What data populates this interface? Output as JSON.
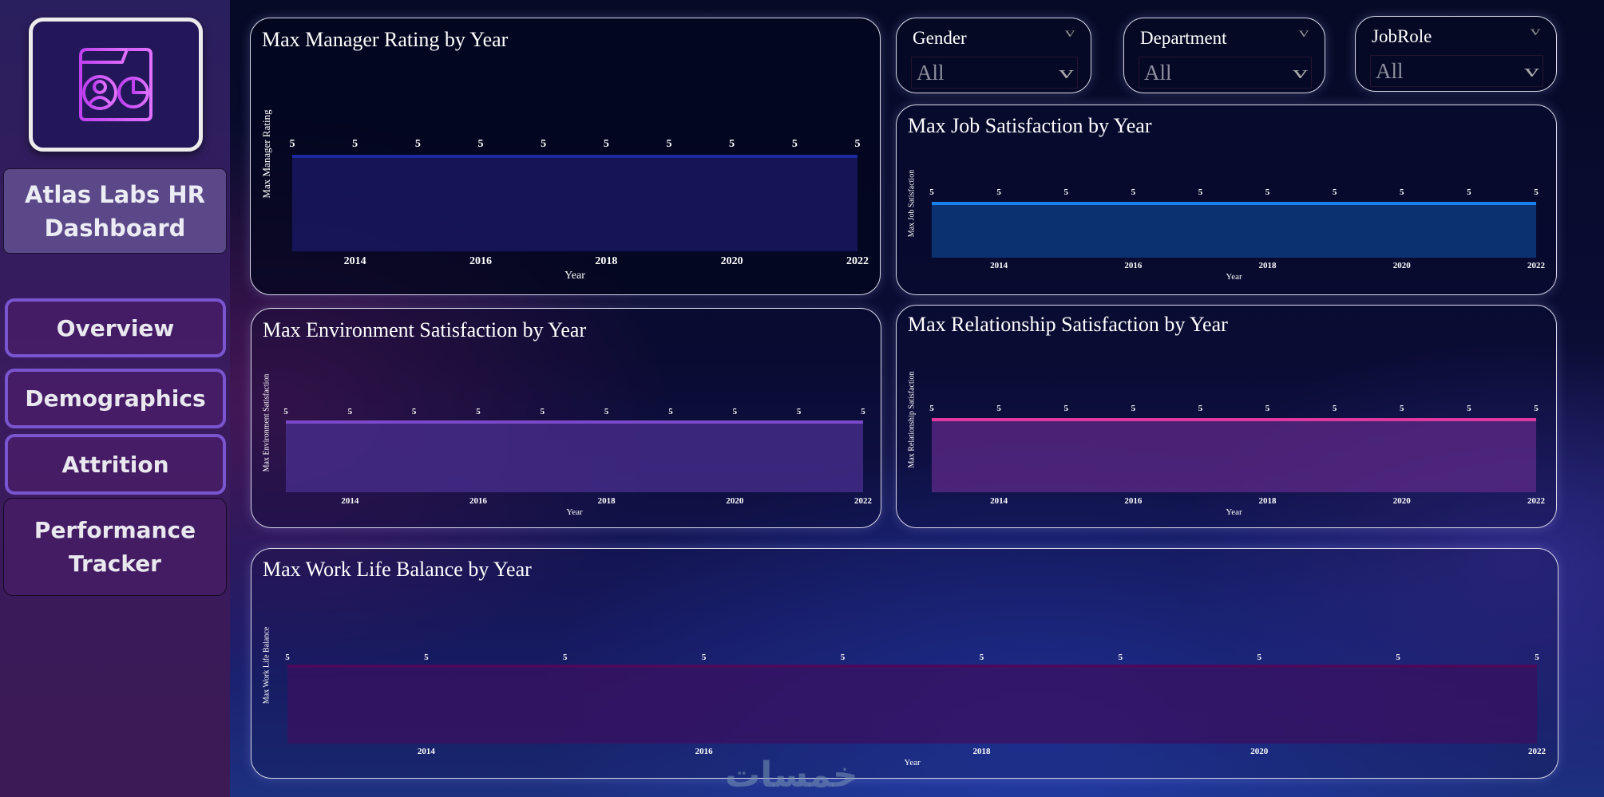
{
  "sidebar": {
    "logo_icon": "dashboard-profile-pie-icon",
    "app_title": "Atlas Labs HR Dashboard",
    "nav": [
      {
        "label": "Overview"
      },
      {
        "label": "Demographics"
      },
      {
        "label": "Attrition"
      },
      {
        "label": "Performance Tracker"
      }
    ]
  },
  "filters": [
    {
      "label": "Gender",
      "value": "All"
    },
    {
      "label": "Department",
      "value": "All"
    },
    {
      "label": "JobRole",
      "value": "All"
    }
  ],
  "watermark": "خمسات",
  "chart_data": [
    {
      "id": "manager",
      "type": "area",
      "title": "Max Manager Rating by Year",
      "xlabel": "Year",
      "ylabel": "Max Manager Rating",
      "x": [
        2013,
        2014,
        2015,
        2016,
        2017,
        2018,
        2019,
        2020,
        2021,
        2022
      ],
      "values": [
        5,
        5,
        5,
        5,
        5,
        5,
        5,
        5,
        5,
        5
      ],
      "xticks": [
        2014,
        2016,
        2018,
        2020,
        2022
      ],
      "ylim": [
        0,
        5
      ],
      "grid": false,
      "data_labels": true,
      "line_color": "#1c2aa0",
      "fill_color": "#1b1a68"
    },
    {
      "id": "job",
      "type": "area",
      "title": "Max Job Satisfaction by Year",
      "xlabel": "Year",
      "ylabel": "Max Job Satisfaction",
      "x": [
        2013,
        2014,
        2015,
        2016,
        2017,
        2018,
        2019,
        2020,
        2021,
        2022
      ],
      "values": [
        5,
        5,
        5,
        5,
        5,
        5,
        5,
        5,
        5,
        5
      ],
      "xticks": [
        2014,
        2016,
        2018,
        2020,
        2022
      ],
      "ylim": [
        0,
        5
      ],
      "grid": false,
      "data_labels": true,
      "line_color": "#1a80ee",
      "fill_color": "#0e3f88"
    },
    {
      "id": "env",
      "type": "area",
      "title": "Max Environment Satisfaction by Year",
      "xlabel": "Year",
      "ylabel": "Max Environment Satisfaction",
      "x": [
        2013,
        2014,
        2015,
        2016,
        2017,
        2018,
        2019,
        2020,
        2021,
        2022
      ],
      "values": [
        5,
        5,
        5,
        5,
        5,
        5,
        5,
        5,
        5,
        5
      ],
      "xticks": [
        2014,
        2016,
        2018,
        2020,
        2022
      ],
      "ylim": [
        0,
        5
      ],
      "grid": false,
      "data_labels": true,
      "line_color": "#7a48c8",
      "fill_color": "#4a2f90"
    },
    {
      "id": "rel",
      "type": "area",
      "title": "Max Relationship Satisfaction by Year",
      "xlabel": "Year",
      "ylabel": "Max Relationship Satisfaction",
      "x": [
        2013,
        2014,
        2015,
        2016,
        2017,
        2018,
        2019,
        2020,
        2021,
        2022
      ],
      "values": [
        5,
        5,
        5,
        5,
        5,
        5,
        5,
        5,
        5,
        5
      ],
      "xticks": [
        2014,
        2016,
        2018,
        2020,
        2022
      ],
      "ylim": [
        0,
        5
      ],
      "grid": false,
      "data_labels": true,
      "line_color": "#e0389e",
      "fill_color": "#5e2a88"
    },
    {
      "id": "wlb",
      "type": "area",
      "title": "Max Work Life Balance by Year",
      "xlabel": "Year",
      "ylabel": "Max Work Life Balance",
      "x": [
        2013,
        2014,
        2015,
        2016,
        2017,
        2018,
        2019,
        2020,
        2021,
        2022
      ],
      "values": [
        5,
        5,
        5,
        5,
        5,
        5,
        5,
        5,
        5,
        5
      ],
      "xticks": [
        2014,
        2016,
        2018,
        2020,
        2022
      ],
      "ylim": [
        0,
        5
      ],
      "grid": false,
      "data_labels": true,
      "line_color": "#4c0a5c",
      "fill_color": "#3a1060"
    }
  ]
}
